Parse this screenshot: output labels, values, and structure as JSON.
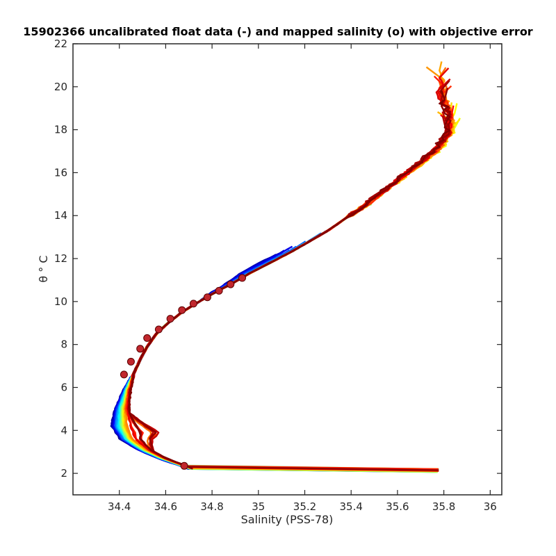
{
  "chart_data": {
    "type": "line",
    "title": "15902366 uncalibrated float data (-) and mapped salinity (o) with objective error",
    "xlabel": "Salinity (PSS-78)",
    "ylabel": "θ ° C",
    "xlim": [
      34.2,
      36.05
    ],
    "ylim": [
      1,
      22
    ],
    "xticks": [
      34.4,
      34.6,
      34.8,
      35,
      35.2,
      35.4,
      35.6,
      35.8,
      36
    ],
    "yticks": [
      2,
      4,
      6,
      8,
      10,
      12,
      14,
      16,
      18,
      20,
      22
    ],
    "colormap": "jet",
    "colormap_stops": [
      "#00008f",
      "#0000ff",
      "#0080ff",
      "#00ffff",
      "#80ff80",
      "#ffff00",
      "#ff8000",
      "#ff0000",
      "#800000"
    ],
    "marker_fill": "#c1272d",
    "grid": false,
    "mean_profile": {
      "s": [
        34.71,
        34.66,
        34.58,
        34.5,
        34.43,
        34.4,
        34.405,
        34.43,
        34.46,
        34.49,
        34.52,
        34.56,
        34.61,
        34.67,
        34.73,
        34.8,
        34.88,
        34.96,
        35.05,
        35.14,
        35.22,
        35.3,
        35.38,
        35.46,
        35.54,
        35.62,
        35.7,
        35.76,
        35.8,
        35.81,
        35.8,
        35.77
      ],
      "t": [
        2.2,
        2.4,
        2.7,
        3.1,
        3.6,
        4.2,
        5.0,
        5.9,
        6.6,
        7.3,
        7.9,
        8.5,
        9.0,
        9.5,
        9.9,
        10.35,
        10.8,
        11.3,
        11.8,
        12.3,
        12.8,
        13.3,
        13.9,
        14.5,
        15.2,
        15.9,
        16.6,
        17.2,
        17.8,
        18.4,
        19.0,
        19.6
      ]
    },
    "mapped_salinity": {
      "s": [
        34.68,
        34.42,
        34.45,
        34.49,
        34.52,
        34.57,
        34.62,
        34.67,
        34.72,
        34.78,
        34.83,
        34.88,
        34.93
      ],
      "t": [
        2.35,
        6.6,
        7.2,
        7.8,
        8.3,
        8.7,
        9.2,
        9.6,
        9.9,
        10.2,
        10.5,
        10.8,
        11.1
      ]
    },
    "profile_count": 60
  }
}
